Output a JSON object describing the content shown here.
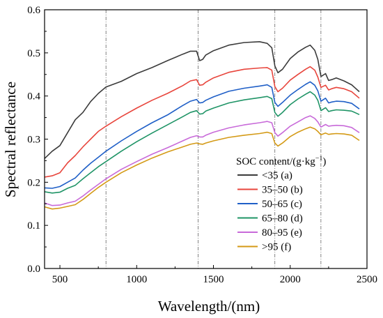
{
  "chart_data": {
    "type": "line",
    "xlabel": "Wavelength/(nm)",
    "ylabel": "Spectral reflectance",
    "xlim": [
      400,
      2500
    ],
    "ylim": [
      0.0,
      0.6
    ],
    "x_ticks": [
      500,
      1000,
      1500,
      2000,
      2500
    ],
    "x_tick_labels": [
      "500",
      "1000",
      "1500",
      "2000",
      "2500"
    ],
    "y_ticks": [
      0.0,
      0.1,
      0.2,
      0.3,
      0.4,
      0.5,
      0.6
    ],
    "y_tick_labels": [
      "0.0",
      "0.1",
      "0.2",
      "0.3",
      "0.4",
      "0.5",
      "0.6"
    ],
    "reference_lines_x": [
      800,
      1400,
      1900,
      2200
    ],
    "grid": false,
    "legend": {
      "title_main": "SOC content/(g·kg",
      "title_sup": "−1",
      "title_end": ")",
      "placement": "lower-right"
    },
    "series": [
      {
        "name": "<35  (a)",
        "color": "#3b3b3b",
        "points": [
          [
            400,
            0.255
          ],
          [
            450,
            0.272
          ],
          [
            500,
            0.285
          ],
          [
            550,
            0.315
          ],
          [
            600,
            0.345
          ],
          [
            650,
            0.362
          ],
          [
            700,
            0.387
          ],
          [
            750,
            0.406
          ],
          [
            800,
            0.421
          ],
          [
            900,
            0.434
          ],
          [
            1000,
            0.452
          ],
          [
            1100,
            0.466
          ],
          [
            1200,
            0.482
          ],
          [
            1300,
            0.497
          ],
          [
            1350,
            0.504
          ],
          [
            1390,
            0.504
          ],
          [
            1410,
            0.482
          ],
          [
            1430,
            0.485
          ],
          [
            1450,
            0.495
          ],
          [
            1500,
            0.505
          ],
          [
            1600,
            0.518
          ],
          [
            1700,
            0.524
          ],
          [
            1800,
            0.526
          ],
          [
            1850,
            0.522
          ],
          [
            1880,
            0.512
          ],
          [
            1900,
            0.47
          ],
          [
            1920,
            0.454
          ],
          [
            1950,
            0.462
          ],
          [
            2000,
            0.487
          ],
          [
            2050,
            0.502
          ],
          [
            2100,
            0.513
          ],
          [
            2130,
            0.518
          ],
          [
            2160,
            0.506
          ],
          [
            2180,
            0.485
          ],
          [
            2200,
            0.445
          ],
          [
            2230,
            0.452
          ],
          [
            2250,
            0.436
          ],
          [
            2270,
            0.438
          ],
          [
            2300,
            0.442
          ],
          [
            2350,
            0.435
          ],
          [
            2400,
            0.426
          ],
          [
            2450,
            0.41
          ]
        ]
      },
      {
        "name": "35–50 (b)",
        "color": "#e8453c",
        "points": [
          [
            400,
            0.212
          ],
          [
            450,
            0.215
          ],
          [
            500,
            0.222
          ],
          [
            550,
            0.245
          ],
          [
            600,
            0.262
          ],
          [
            650,
            0.282
          ],
          [
            700,
            0.3
          ],
          [
            750,
            0.318
          ],
          [
            800,
            0.33
          ],
          [
            900,
            0.352
          ],
          [
            1000,
            0.372
          ],
          [
            1100,
            0.39
          ],
          [
            1200,
            0.406
          ],
          [
            1300,
            0.424
          ],
          [
            1350,
            0.435
          ],
          [
            1390,
            0.438
          ],
          [
            1410,
            0.425
          ],
          [
            1430,
            0.426
          ],
          [
            1450,
            0.432
          ],
          [
            1500,
            0.442
          ],
          [
            1600,
            0.455
          ],
          [
            1700,
            0.462
          ],
          [
            1800,
            0.465
          ],
          [
            1850,
            0.466
          ],
          [
            1880,
            0.46
          ],
          [
            1900,
            0.422
          ],
          [
            1920,
            0.41
          ],
          [
            1950,
            0.418
          ],
          [
            2000,
            0.437
          ],
          [
            2050,
            0.45
          ],
          [
            2100,
            0.462
          ],
          [
            2130,
            0.468
          ],
          [
            2160,
            0.46
          ],
          [
            2180,
            0.444
          ],
          [
            2200,
            0.42
          ],
          [
            2230,
            0.425
          ],
          [
            2250,
            0.414
          ],
          [
            2270,
            0.417
          ],
          [
            2300,
            0.42
          ],
          [
            2350,
            0.417
          ],
          [
            2400,
            0.41
          ],
          [
            2450,
            0.395
          ]
        ]
      },
      {
        "name": "50–65 (c)",
        "color": "#1f5fc7",
        "points": [
          [
            400,
            0.187
          ],
          [
            450,
            0.186
          ],
          [
            500,
            0.19
          ],
          [
            550,
            0.2
          ],
          [
            600,
            0.21
          ],
          [
            650,
            0.228
          ],
          [
            700,
            0.244
          ],
          [
            750,
            0.258
          ],
          [
            800,
            0.272
          ],
          [
            900,
            0.296
          ],
          [
            1000,
            0.318
          ],
          [
            1100,
            0.338
          ],
          [
            1200,
            0.356
          ],
          [
            1300,
            0.378
          ],
          [
            1350,
            0.388
          ],
          [
            1390,
            0.392
          ],
          [
            1410,
            0.384
          ],
          [
            1430,
            0.385
          ],
          [
            1450,
            0.39
          ],
          [
            1500,
            0.398
          ],
          [
            1600,
            0.411
          ],
          [
            1700,
            0.418
          ],
          [
            1800,
            0.423
          ],
          [
            1850,
            0.426
          ],
          [
            1880,
            0.42
          ],
          [
            1900,
            0.385
          ],
          [
            1920,
            0.376
          ],
          [
            1950,
            0.385
          ],
          [
            2000,
            0.402
          ],
          [
            2050,
            0.415
          ],
          [
            2100,
            0.427
          ],
          [
            2130,
            0.433
          ],
          [
            2160,
            0.425
          ],
          [
            2180,
            0.412
          ],
          [
            2200,
            0.388
          ],
          [
            2230,
            0.395
          ],
          [
            2250,
            0.384
          ],
          [
            2270,
            0.386
          ],
          [
            2300,
            0.388
          ],
          [
            2350,
            0.387
          ],
          [
            2400,
            0.383
          ],
          [
            2450,
            0.37
          ]
        ]
      },
      {
        "name": "65–80 (d)",
        "color": "#1f9466",
        "points": [
          [
            400,
            0.178
          ],
          [
            450,
            0.175
          ],
          [
            500,
            0.177
          ],
          [
            550,
            0.186
          ],
          [
            600,
            0.193
          ],
          [
            650,
            0.208
          ],
          [
            700,
            0.222
          ],
          [
            750,
            0.236
          ],
          [
            800,
            0.248
          ],
          [
            900,
            0.272
          ],
          [
            1000,
            0.294
          ],
          [
            1100,
            0.314
          ],
          [
            1200,
            0.333
          ],
          [
            1300,
            0.352
          ],
          [
            1350,
            0.362
          ],
          [
            1390,
            0.366
          ],
          [
            1410,
            0.358
          ],
          [
            1430,
            0.359
          ],
          [
            1450,
            0.365
          ],
          [
            1500,
            0.372
          ],
          [
            1600,
            0.384
          ],
          [
            1700,
            0.391
          ],
          [
            1800,
            0.396
          ],
          [
            1850,
            0.399
          ],
          [
            1880,
            0.394
          ],
          [
            1900,
            0.362
          ],
          [
            1920,
            0.353
          ],
          [
            1950,
            0.362
          ],
          [
            2000,
            0.38
          ],
          [
            2050,
            0.393
          ],
          [
            2100,
            0.404
          ],
          [
            2130,
            0.41
          ],
          [
            2160,
            0.402
          ],
          [
            2180,
            0.39
          ],
          [
            2200,
            0.366
          ],
          [
            2230,
            0.373
          ],
          [
            2250,
            0.364
          ],
          [
            2270,
            0.366
          ],
          [
            2300,
            0.368
          ],
          [
            2350,
            0.367
          ],
          [
            2400,
            0.365
          ],
          [
            2450,
            0.357
          ]
        ]
      },
      {
        "name": "80–95 (e)",
        "color": "#c86ad9",
        "points": [
          [
            400,
            0.152
          ],
          [
            450,
            0.146
          ],
          [
            500,
            0.147
          ],
          [
            550,
            0.152
          ],
          [
            600,
            0.156
          ],
          [
            650,
            0.168
          ],
          [
            700,
            0.182
          ],
          [
            750,
            0.195
          ],
          [
            800,
            0.208
          ],
          [
            900,
            0.23
          ],
          [
            1000,
            0.248
          ],
          [
            1100,
            0.265
          ],
          [
            1200,
            0.28
          ],
          [
            1300,
            0.296
          ],
          [
            1350,
            0.304
          ],
          [
            1390,
            0.308
          ],
          [
            1410,
            0.305
          ],
          [
            1430,
            0.305
          ],
          [
            1450,
            0.309
          ],
          [
            1500,
            0.316
          ],
          [
            1600,
            0.326
          ],
          [
            1700,
            0.333
          ],
          [
            1800,
            0.338
          ],
          [
            1850,
            0.341
          ],
          [
            1880,
            0.338
          ],
          [
            1900,
            0.315
          ],
          [
            1920,
            0.307
          ],
          [
            1950,
            0.315
          ],
          [
            2000,
            0.33
          ],
          [
            2050,
            0.34
          ],
          [
            2100,
            0.35
          ],
          [
            2130,
            0.354
          ],
          [
            2160,
            0.348
          ],
          [
            2180,
            0.34
          ],
          [
            2200,
            0.328
          ],
          [
            2230,
            0.334
          ],
          [
            2250,
            0.33
          ],
          [
            2270,
            0.331
          ],
          [
            2300,
            0.332
          ],
          [
            2350,
            0.331
          ],
          [
            2400,
            0.327
          ],
          [
            2450,
            0.315
          ]
        ]
      },
      {
        "name": ">95 (f)",
        "color": "#d49a16",
        "points": [
          [
            400,
            0.143
          ],
          [
            450,
            0.138
          ],
          [
            500,
            0.14
          ],
          [
            550,
            0.144
          ],
          [
            600,
            0.148
          ],
          [
            650,
            0.16
          ],
          [
            700,
            0.174
          ],
          [
            750,
            0.188
          ],
          [
            800,
            0.2
          ],
          [
            900,
            0.222
          ],
          [
            1000,
            0.24
          ],
          [
            1100,
            0.256
          ],
          [
            1200,
            0.27
          ],
          [
            1300,
            0.282
          ],
          [
            1350,
            0.288
          ],
          [
            1390,
            0.291
          ],
          [
            1410,
            0.289
          ],
          [
            1430,
            0.288
          ],
          [
            1450,
            0.291
          ],
          [
            1500,
            0.296
          ],
          [
            1600,
            0.304
          ],
          [
            1700,
            0.309
          ],
          [
            1800,
            0.313
          ],
          [
            1850,
            0.316
          ],
          [
            1880,
            0.313
          ],
          [
            1900,
            0.291
          ],
          [
            1920,
            0.284
          ],
          [
            1950,
            0.291
          ],
          [
            2000,
            0.306
          ],
          [
            2050,
            0.316
          ],
          [
            2100,
            0.324
          ],
          [
            2130,
            0.328
          ],
          [
            2160,
            0.324
          ],
          [
            2180,
            0.318
          ],
          [
            2200,
            0.31
          ],
          [
            2230,
            0.314
          ],
          [
            2250,
            0.311
          ],
          [
            2270,
            0.312
          ],
          [
            2300,
            0.313
          ],
          [
            2350,
            0.312
          ],
          [
            2400,
            0.309
          ],
          [
            2450,
            0.297
          ]
        ]
      }
    ]
  }
}
